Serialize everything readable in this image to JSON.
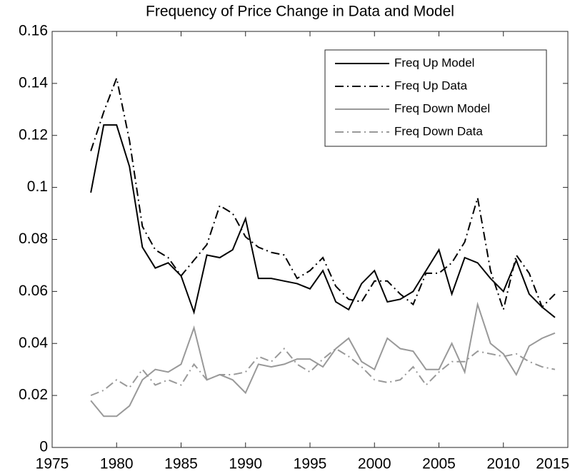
{
  "chart_data": {
    "type": "line",
    "title": "Frequency of Price Change in Data and Model",
    "x": [
      1978,
      1979,
      1980,
      1981,
      1982,
      1983,
      1984,
      1985,
      1986,
      1987,
      1988,
      1989,
      1990,
      1991,
      1992,
      1993,
      1994,
      1995,
      1996,
      1997,
      1998,
      1999,
      2000,
      2001,
      2002,
      2003,
      2004,
      2005,
      2006,
      2007,
      2008,
      2009,
      2010,
      2011,
      2012,
      2013,
      2014
    ],
    "series": [
      {
        "name": "Freq Up Model",
        "color": "#000000",
        "style": "solid",
        "values": [
          0.098,
          0.124,
          0.124,
          0.108,
          0.077,
          0.069,
          0.071,
          0.066,
          0.052,
          0.074,
          0.073,
          0.076,
          0.088,
          0.065,
          0.065,
          0.064,
          0.063,
          0.061,
          0.068,
          0.056,
          0.053,
          0.063,
          0.068,
          0.056,
          0.057,
          0.06,
          0.068,
          0.076,
          0.059,
          0.073,
          0.071,
          0.065,
          0.06,
          0.072,
          0.059,
          0.054,
          0.05
        ]
      },
      {
        "name": "Freq Up Data",
        "color": "#000000",
        "style": "dashdot",
        "values": [
          0.114,
          0.129,
          0.142,
          0.118,
          0.085,
          0.076,
          0.073,
          0.066,
          0.072,
          0.078,
          0.093,
          0.09,
          0.081,
          0.077,
          0.075,
          0.074,
          0.065,
          0.068,
          0.073,
          0.062,
          0.057,
          0.056,
          0.064,
          0.064,
          0.059,
          0.055,
          0.067,
          0.067,
          0.071,
          0.079,
          0.096,
          0.068,
          0.053,
          0.074,
          0.067,
          0.054,
          0.059
        ]
      },
      {
        "name": "Freq Down Model",
        "color": "#999999",
        "style": "solid",
        "values": [
          0.018,
          0.012,
          0.012,
          0.016,
          0.026,
          0.03,
          0.029,
          0.032,
          0.046,
          0.026,
          0.028,
          0.026,
          0.021,
          0.032,
          0.031,
          0.032,
          0.034,
          0.034,
          0.031,
          0.038,
          0.042,
          0.033,
          0.03,
          0.042,
          0.038,
          0.037,
          0.03,
          0.03,
          0.04,
          0.029,
          0.055,
          0.04,
          0.036,
          0.028,
          0.039,
          0.042,
          0.044
        ]
      },
      {
        "name": "Freq Down Data",
        "color": "#999999",
        "style": "dashdot",
        "values": [
          0.02,
          0.022,
          0.026,
          0.023,
          0.03,
          0.024,
          0.026,
          0.024,
          0.032,
          0.026,
          0.028,
          0.028,
          0.029,
          0.035,
          0.033,
          0.038,
          0.032,
          0.029,
          0.034,
          0.038,
          0.035,
          0.031,
          0.026,
          0.025,
          0.026,
          0.031,
          0.024,
          0.029,
          0.033,
          0.033,
          0.037,
          0.036,
          0.035,
          0.036,
          0.033,
          0.031,
          0.03
        ]
      }
    ],
    "xlim": [
      1975,
      2015
    ],
    "xticks": [
      1975,
      1980,
      1985,
      1990,
      1995,
      2000,
      2005,
      2010,
      2015
    ],
    "ylim": [
      0,
      0.16
    ],
    "yticks": [
      0,
      0.02,
      0.04,
      0.06,
      0.08,
      0.1,
      0.12,
      0.14,
      0.16
    ],
    "grid": false,
    "legend_position": "northeast"
  }
}
